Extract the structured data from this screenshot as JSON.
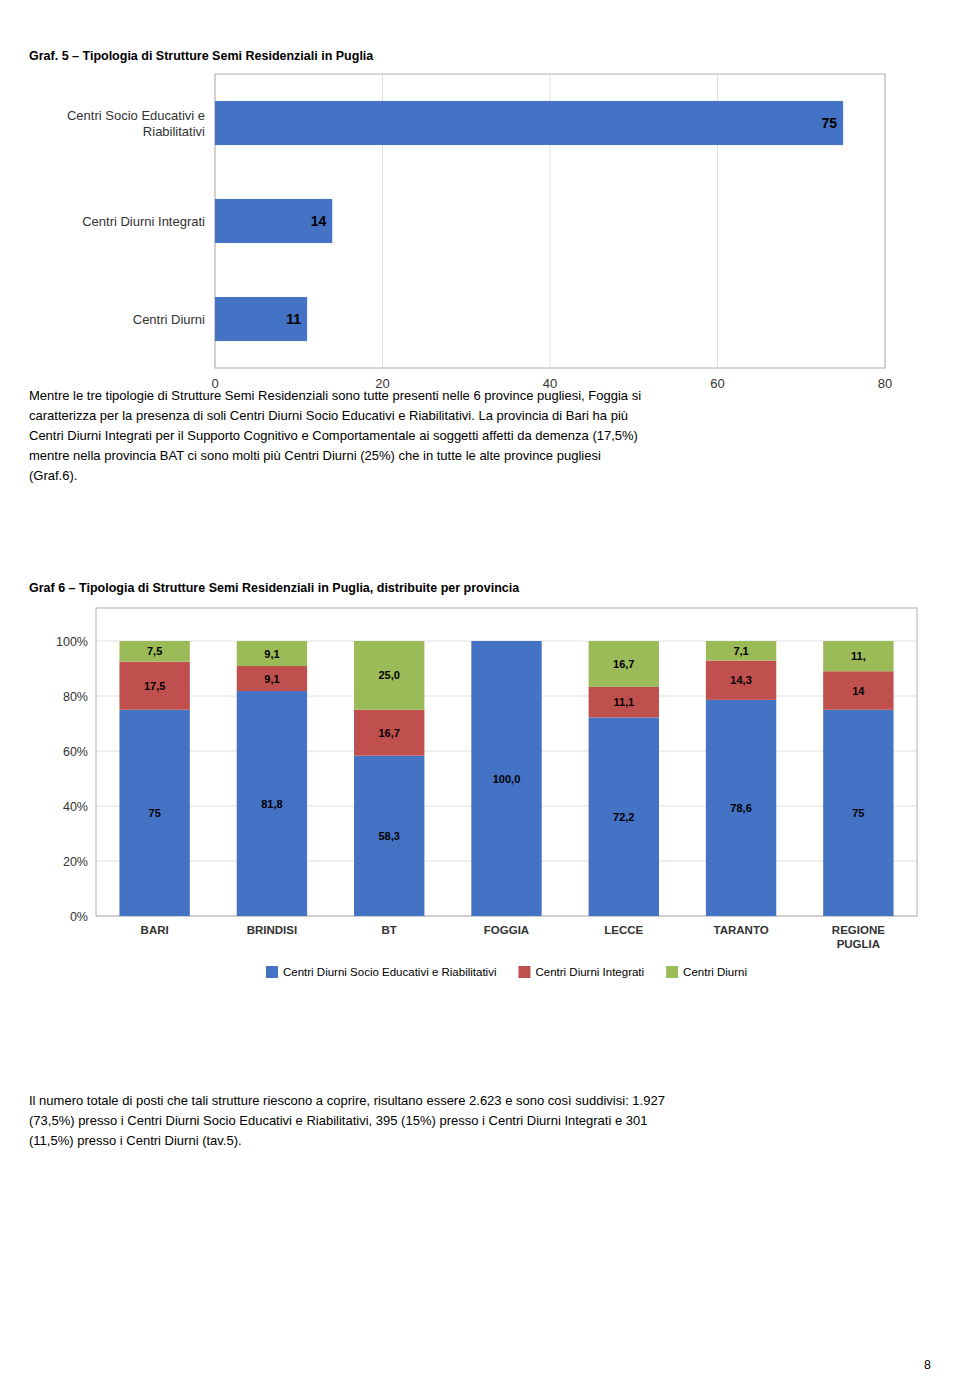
{
  "chart_data": [
    {
      "type": "bar",
      "title": "Graf. 5 – Tipologia di Strutture Semi Residenziali in Puglia",
      "orientation": "horizontal",
      "categories": [
        "Centri Socio Educativi e\nRiabilitativi",
        "Centri Diurni Integrati",
        "Centri Diurni"
      ],
      "values": [
        75,
        14,
        11
      ],
      "color": "#4472C4",
      "xlim": [
        0,
        80
      ],
      "xticks": [
        0,
        20,
        40,
        60,
        80
      ],
      "grid": true,
      "data_labels": true,
      "annotations": [
        "Mentre le tre tipologie di Strutture Semi Residenziali sono tutte presenti nelle 6 province pugliesi, Foggia si\ncaratterizza per la presenza di soli Centri Diurni Socio Educativi e Riabilitativi. La provincia di Bari ha più\nCentri Diurni Integrati per il Supporto Cognitivo e Comportamentale ai soggetti affetti da demenza (17,5%)\nmentre nella provincia BAT ci sono molti più Centri Diurni (25%) che in tutte le alte province pugliesi\n(Graf.6)."
      ]
    },
    {
      "type": "bar",
      "title": "Graf 6 – Tipologia di Strutture Semi Residenziali in Puglia, distribuite per provincia",
      "stacked": true,
      "categories": [
        "BARI",
        "BRINDISI",
        "BT",
        "FOGGIA",
        "LECCE",
        "TARANTO",
        "REGIONE\nPUGLIA"
      ],
      "series": [
        {
          "name": "Centri Diurni Socio Educativi e Riabilitativi",
          "color": "#4472C4",
          "values": [
            75.0,
            81.8,
            58.3,
            100.0,
            72.2,
            78.6,
            75.0
          ],
          "value_labels": [
            "75",
            "81,8",
            "58,3",
            "100,0",
            "72,2",
            "78,6",
            "75"
          ]
        },
        {
          "name": "Centri Diurni Integrati",
          "color": "#C0504D",
          "values": [
            17.5,
            9.1,
            16.7,
            0.0,
            11.1,
            14.3,
            14.0
          ],
          "value_labels": [
            "17,5",
            "9,1",
            "16,7",
            null,
            "11,1",
            "14,3",
            "14"
          ]
        },
        {
          "name": "Centri Diurni",
          "color": "#9BBB59",
          "values": [
            7.5,
            9.1,
            25.0,
            0.0,
            16.7,
            7.1,
            11.0
          ],
          "value_labels": [
            "7,5",
            "9,1",
            "25,0",
            null,
            "16,7",
            "7,1",
            "11,"
          ]
        }
      ],
      "ylim": [
        0,
        112
      ],
      "yticks": [
        {
          "value": 0,
          "label": "0%"
        },
        {
          "value": 20,
          "label": "20%"
        },
        {
          "value": 40,
          "label": "40%"
        },
        {
          "value": 60,
          "label": "60%"
        },
        {
          "value": 80,
          "label": "80%"
        },
        {
          "value": 100,
          "label": "100%"
        }
      ],
      "grid": true,
      "data_labels": true,
      "legend": "bottom",
      "annotations": [
        "Il numero totale di posti che tali strutture riescono a coprire, risultano essere 2.623 e sono così suddivisi: 1.927\n(73,5%) presso i Centri Diurni Socio Educativi e Riabilitativi, 395 (15%) presso i Centri Diurni Integrati e 301\n(11,5%) presso i Centri Diurni (tav.5)."
      ]
    }
  ],
  "page_number": "8"
}
